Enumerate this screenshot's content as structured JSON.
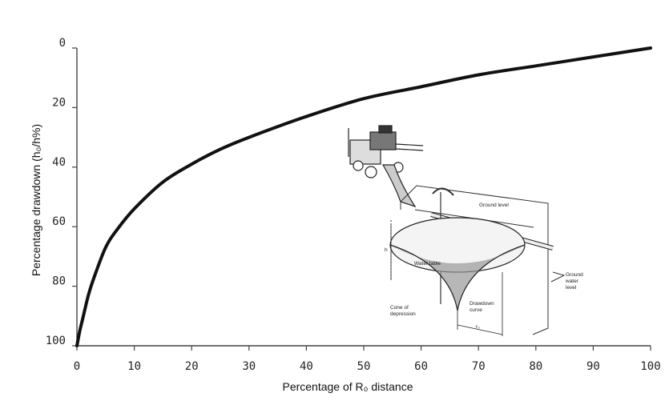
{
  "chart_data": {
    "type": "line",
    "xlabel": "Percentage of R₀ distance",
    "ylabel": "Percentage drawdown (h₀/h%)",
    "xlim": [
      0,
      100
    ],
    "ylim": [
      0,
      100
    ],
    "y_inverted": true,
    "grid": false,
    "x_ticks": [
      "0",
      "10",
      "20",
      "30",
      "40",
      "50",
      "60",
      "70",
      "80",
      "90",
      "100"
    ],
    "y_ticks": [
      "0",
      "20",
      "40",
      "60",
      "80",
      "100"
    ],
    "series": [
      {
        "x": [
          0,
          0.5,
          1,
          2,
          3,
          5,
          7,
          10,
          15,
          20,
          25,
          30,
          40,
          50,
          60,
          70,
          80,
          90,
          100
        ],
        "y": [
          100,
          95,
          91,
          83,
          77,
          67,
          61,
          54,
          45,
          39,
          34,
          30,
          23,
          17,
          13,
          9,
          6,
          3,
          0
        ]
      }
    ],
    "color": "#111111"
  },
  "illustration": {
    "labels": {
      "ground_level": "Ground level",
      "water_table": "Water table",
      "ground_water": "Ground",
      "ground_water_2": "water",
      "ground_water_3": "level",
      "cone_1": "Cone of",
      "cone_2": "depression",
      "drawdown_1": "Drawdown",
      "drawdown_2": "curve",
      "h": "h",
      "r": "r₀"
    }
  }
}
